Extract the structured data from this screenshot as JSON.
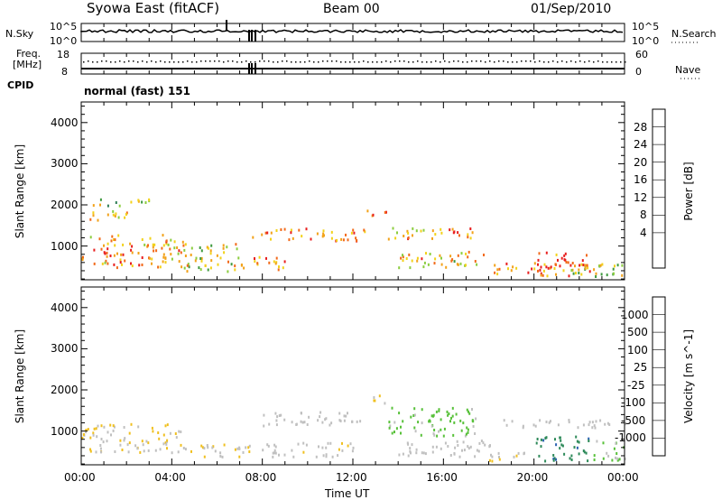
{
  "header": {
    "station": "Syowa East (fitACF)",
    "beam": "Beam 00",
    "date": "01/Sep/2010"
  },
  "top_panels": {
    "nsky_label": "N.Sky",
    "nsky_tick_high": "10^5",
    "nsky_tick_low": "10^0",
    "nsearch_label": "N.Search",
    "nsearch_tick_high": "10^5",
    "nsearch_tick_low": "10^0",
    "freq_label_1": "Freq.",
    "freq_label_2": "[MHz]",
    "freq_tick_high": "18",
    "freq_tick_low": "8",
    "nave_label": "Nave",
    "nave_tick_high": "60",
    "nave_tick_low": "0",
    "cpid_label": "CPID",
    "cpid_value": "normal (fast) 151"
  },
  "axes": {
    "ylabel": "Slant Range [km]",
    "yticks": [
      "1000",
      "2000",
      "3000",
      "4000"
    ],
    "xlabel": "Time UT",
    "xticks": [
      "00:00",
      "04:00",
      "08:00",
      "12:00",
      "16:00",
      "20:00",
      "00:00"
    ]
  },
  "colorbars": {
    "power": {
      "label": "Power [dB]",
      "ticks": [
        "4",
        "8",
        "12",
        "16",
        "20",
        "24",
        "28"
      ],
      "colors": [
        "#1a1aff",
        "#2b4fb8",
        "#2f7d55",
        "#3f9a3f",
        "#8ccd3f",
        "#f2d21a",
        "#f2a21a",
        "#f26a1a",
        "#e81e1e"
      ]
    },
    "velocity": {
      "label": "Velocity [m s^-1]",
      "ticks": [
        "1000",
        "500",
        "100",
        "25",
        "-25",
        "-100",
        "-500",
        "-1000"
      ],
      "colors": [
        "#2626d9",
        "#2b62b0",
        "#2e8a5a",
        "#58c13a",
        "#c0c0c0",
        "#f0c020",
        "#f08a1a",
        "#e84a12",
        "#e01414"
      ]
    }
  },
  "chart_data": [
    {
      "type": "heatmap",
      "title": "Power [dB]",
      "x_unit": "hours UT",
      "y_unit": "km",
      "xlim": [
        0,
        24
      ],
      "ylim": [
        180,
        4500
      ],
      "clim": [
        0,
        30
      ],
      "regions": [
        {
          "t": [
            0.0,
            4.5
          ],
          "r": [
            500,
            1300
          ],
          "power": 22
        },
        {
          "t": [
            0.3,
            2.0
          ],
          "r": [
            1600,
            1900
          ],
          "power": 20
        },
        {
          "t": [
            0.5,
            3.0
          ],
          "r": [
            2000,
            2200
          ],
          "power": 14
        },
        {
          "t": [
            4.5,
            7.0
          ],
          "r": [
            400,
            1100
          ],
          "power": 18
        },
        {
          "t": [
            7.0,
            9.0
          ],
          "r": [
            450,
            800
          ],
          "power": 24
        },
        {
          "t": [
            7.5,
            12.5
          ],
          "r": [
            1150,
            1450
          ],
          "power": 22
        },
        {
          "t": [
            12.5,
            13.5
          ],
          "r": [
            1700,
            1900
          ],
          "power": 24
        },
        {
          "t": [
            13.5,
            17.5
          ],
          "r": [
            1200,
            1500
          ],
          "power": 22
        },
        {
          "t": [
            14.0,
            18.0
          ],
          "r": [
            500,
            900
          ],
          "power": 20
        },
        {
          "t": [
            18.0,
            21.0
          ],
          "r": [
            300,
            600
          ],
          "power": 24
        },
        {
          "t": [
            20.0,
            22.5
          ],
          "r": [
            300,
            900
          ],
          "power": 26
        },
        {
          "t": [
            21.5,
            24.0
          ],
          "r": [
            200,
            600
          ],
          "power": 16
        }
      ]
    },
    {
      "type": "heatmap",
      "title": "Velocity [m s^-1]",
      "x_unit": "hours UT",
      "y_unit": "km",
      "xlim": [
        0,
        24
      ],
      "ylim": [
        180,
        4500
      ],
      "clim": [
        -1000,
        1000
      ],
      "regions": [
        {
          "t": [
            0.0,
            4.5
          ],
          "r": [
            500,
            1200
          ],
          "velocity": -100
        },
        {
          "t": [
            4.5,
            8.0
          ],
          "r": [
            400,
            700
          ],
          "velocity": -100
        },
        {
          "t": [
            8.0,
            12.5
          ],
          "r": [
            1150,
            1500
          ],
          "velocity": 0
        },
        {
          "t": [
            8.0,
            12.0
          ],
          "r": [
            400,
            750
          ],
          "velocity": -50
        },
        {
          "t": [
            12.5,
            13.5
          ],
          "r": [
            1700,
            1900
          ],
          "velocity": -100
        },
        {
          "t": [
            13.5,
            17.5
          ],
          "r": [
            900,
            1600
          ],
          "velocity": 150
        },
        {
          "t": [
            14.0,
            18.5
          ],
          "r": [
            400,
            800
          ],
          "velocity": 0
        },
        {
          "t": [
            18.5,
            24.0
          ],
          "r": [
            1100,
            1300
          ],
          "velocity": 0
        },
        {
          "t": [
            18.0,
            20.0
          ],
          "r": [
            300,
            500
          ],
          "velocity": -100
        },
        {
          "t": [
            20.0,
            22.5
          ],
          "r": [
            300,
            900
          ],
          "velocity": 500
        },
        {
          "t": [
            22.5,
            24.0
          ],
          "r": [
            300,
            800
          ],
          "velocity": 100
        }
      ]
    }
  ]
}
